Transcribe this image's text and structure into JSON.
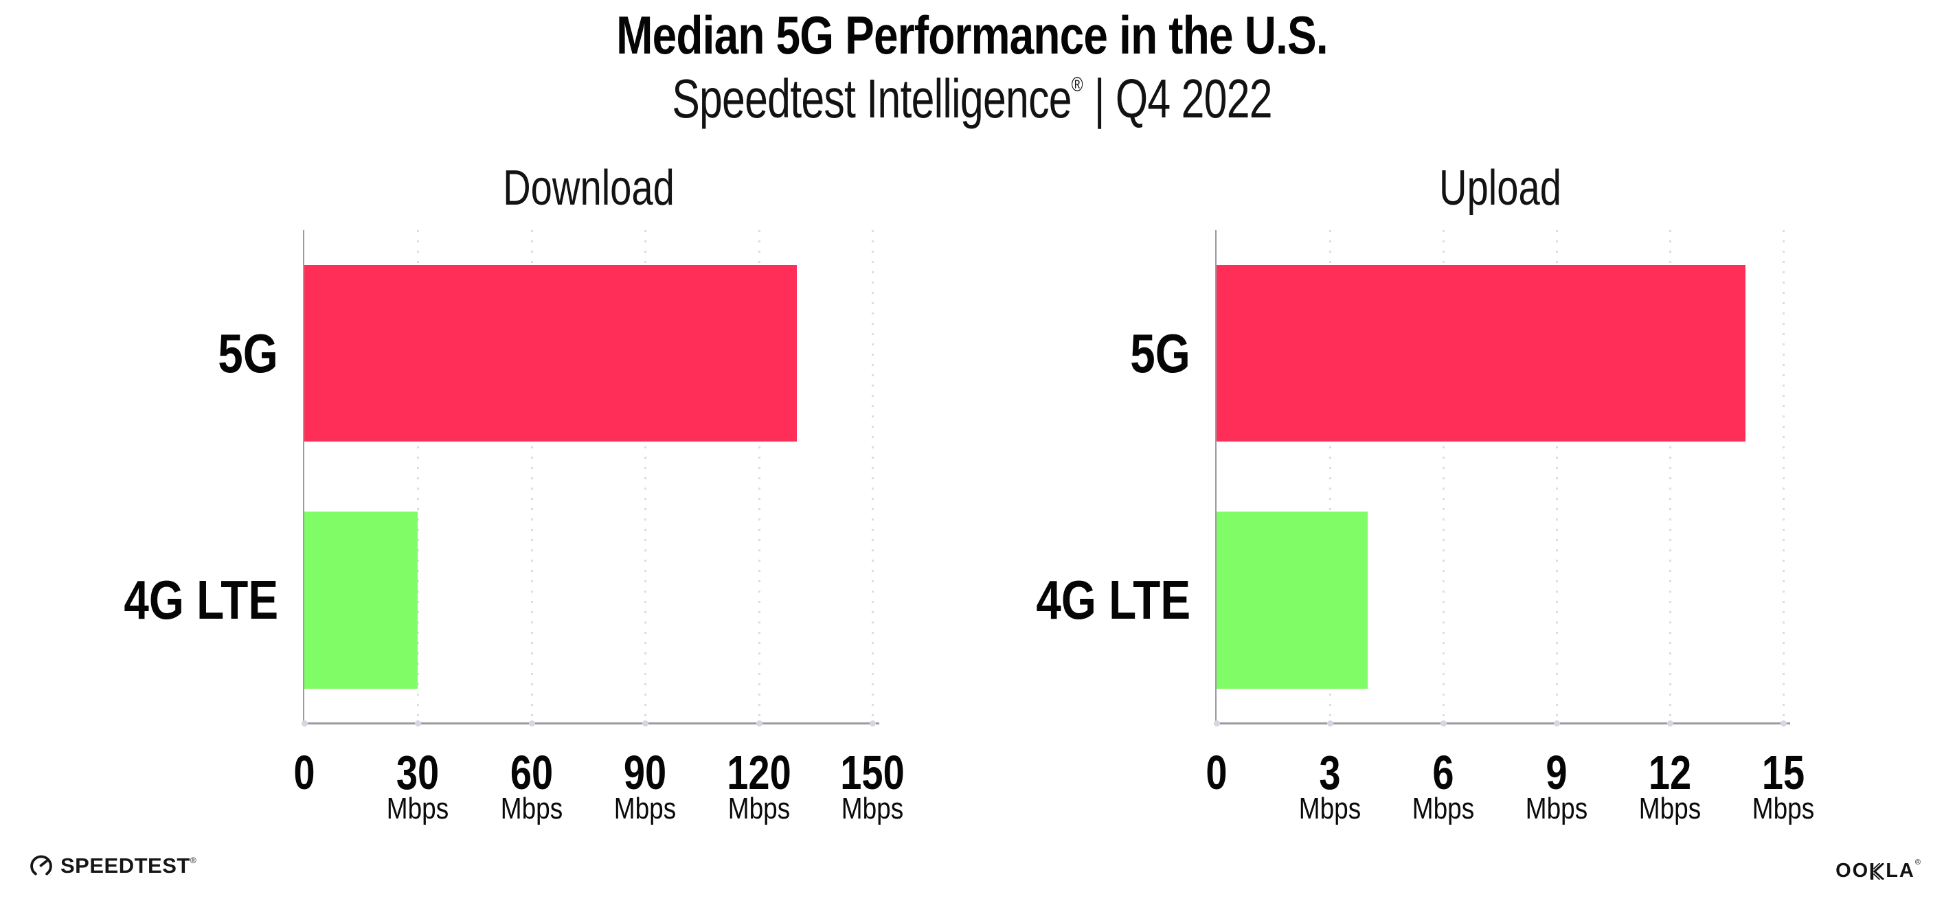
{
  "header": {
    "title": "Median 5G Performance in the U.S.",
    "subtitle_brand": "Speedtest Intelligence",
    "subtitle_reg": "®",
    "subtitle_rest": " | Q4 2022"
  },
  "colors": {
    "bar_5g": "#FF2E58",
    "bar_4g_lte": "#80FC66",
    "axis": "#9B9BA1",
    "gridline": "#DCDCE8",
    "text": "#050505"
  },
  "chart_data": [
    {
      "type": "bar",
      "orientation": "horizontal",
      "title": "Download",
      "categories": [
        "5G",
        "4G LTE"
      ],
      "values": [
        130,
        30
      ],
      "unit": "Mbps",
      "xlim": [
        0,
        150
      ],
      "xticks": [
        0,
        30,
        60,
        90,
        120,
        150
      ],
      "bar_colors": [
        "#FF2E58",
        "#80FC66"
      ],
      "grid": "dotted vertical at each tick",
      "legend": "none"
    },
    {
      "type": "bar",
      "orientation": "horizontal",
      "title": "Upload",
      "categories": [
        "5G",
        "4G LTE"
      ],
      "values": [
        14,
        4
      ],
      "unit": "Mbps",
      "xlim": [
        0,
        15
      ],
      "xticks": [
        0,
        3,
        6,
        9,
        12,
        15
      ],
      "bar_colors": [
        "#FF2E58",
        "#80FC66"
      ],
      "grid": "dotted vertical at each tick",
      "legend": "none"
    }
  ],
  "footer": {
    "speedtest_label": "SPEEDTEST",
    "speedtest_reg": "®",
    "ookla_pre": "OO",
    "ookla_k": "K",
    "ookla_post": "LA",
    "ookla_reg": "®"
  }
}
